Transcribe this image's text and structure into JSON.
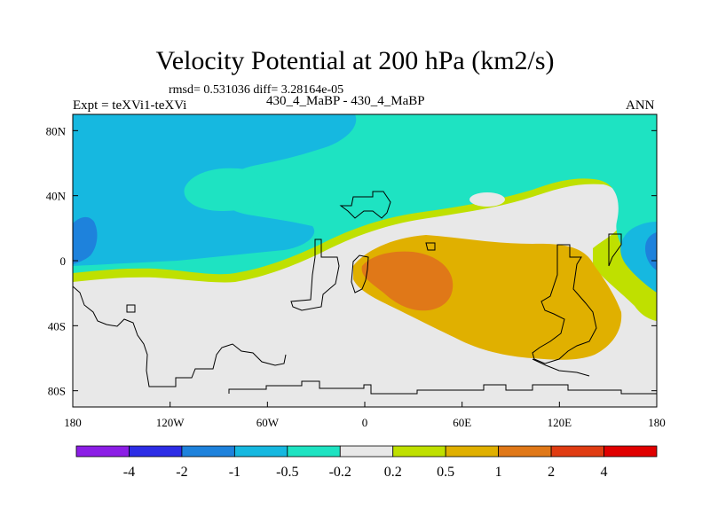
{
  "chart_data": {
    "type": "heatmap",
    "title": "Velocity Potential at 200 hPa (km2/s)",
    "stats": "rmsd= 0.531036 diff= 3.28164e-05",
    "left_label": "Expt = teXVi1-teXVi",
    "center_label": "430_4_MaBP - 430_4_MaBP",
    "right_label": "ANN",
    "x_ticks": [
      {
        "value": -180,
        "label": "180"
      },
      {
        "value": -120,
        "label": "120W"
      },
      {
        "value": -60,
        "label": "60W"
      },
      {
        "value": 0,
        "label": "0"
      },
      {
        "value": 60,
        "label": "60E"
      },
      {
        "value": 120,
        "label": "120E"
      },
      {
        "value": 180,
        "label": "180"
      }
    ],
    "y_ticks": [
      {
        "value": 80,
        "label": "80N"
      },
      {
        "value": 40,
        "label": "40N"
      },
      {
        "value": 0,
        "label": "0"
      },
      {
        "value": -40,
        "label": "40S"
      },
      {
        "value": -80,
        "label": "80S"
      }
    ],
    "xlim": [
      -180,
      180
    ],
    "ylim": [
      -90,
      90
    ],
    "colorbar": {
      "colors": [
        "#8c1ee6",
        "#2d2de6",
        "#1e82dc",
        "#16b8e0",
        "#1ee3c2",
        "#e8e8e8",
        "#bfe000",
        "#e0b000",
        "#e07818",
        "#e03c12",
        "#e00000"
      ],
      "labels": [
        "-4",
        "-2",
        "-1",
        "-0.5",
        "-0.2",
        "0.2",
        "0.5",
        "1",
        "2",
        "4"
      ]
    }
  }
}
